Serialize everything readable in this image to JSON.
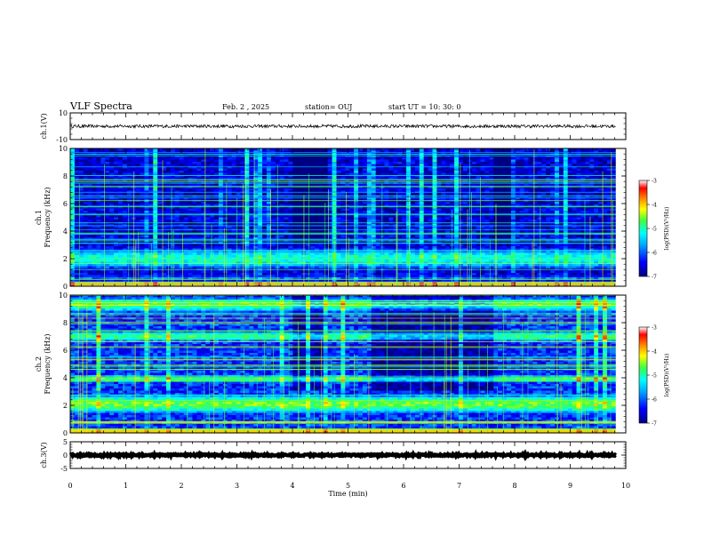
{
  "header": {
    "title": "VLF Spectra",
    "date": "Feb. 2 , 2025",
    "station": "station= OUJ",
    "start": "start UT = 10: 30: 0"
  },
  "chart_data": [
    {
      "type": "line",
      "name": "ch1-waveform",
      "ylabel": "ch.1(V)",
      "ylim": [
        -10,
        10
      ],
      "yticks": [
        "10",
        "-10"
      ],
      "baseline": 0,
      "amplitude": 1.2
    },
    {
      "type": "heatmap",
      "name": "ch1-spectrogram",
      "ylabel_top": "ch.1",
      "ylabel": "Frequency (kHz)",
      "ylim": [
        0,
        10
      ],
      "yticks": [
        "0",
        "2",
        "4",
        "6",
        "8",
        "10"
      ],
      "colorbar": {
        "label": "log(PSD)(V²/Hz)",
        "range": [
          -7,
          -3
        ],
        "ticks": [
          "-3",
          "-4",
          "-5",
          "-6",
          "-7"
        ]
      },
      "bands_khz": [
        {
          "center": 2.0,
          "width": 1.2,
          "level": -5.1
        },
        {
          "center": 0.6,
          "width": 0.3,
          "level": -5.8
        }
      ],
      "background_level": -6.6,
      "quiet_intervals_min": [
        [
          4.0,
          4.6
        ],
        [
          7.6,
          8.0
        ]
      ]
    },
    {
      "type": "heatmap",
      "name": "ch2-spectrogram",
      "ylabel_top": "ch.2",
      "ylabel": "Frequency (kHz)",
      "ylim": [
        0,
        10
      ],
      "yticks": [
        "0",
        "2",
        "4",
        "6",
        "8",
        "10"
      ],
      "colorbar": {
        "label": "log(PSD)(V²/Hz)",
        "range": [
          -7,
          -3
        ],
        "ticks": [
          "-3",
          "-4",
          "-5",
          "-6",
          "-7"
        ]
      },
      "bands_khz": [
        {
          "center": 2.1,
          "width": 1.0,
          "level": -4.6
        },
        {
          "center": 3.9,
          "width": 0.4,
          "level": -4.6
        },
        {
          "center": 7.0,
          "width": 0.6,
          "level": -4.8
        },
        {
          "center": 9.3,
          "width": 0.8,
          "level": -4.7
        }
      ],
      "background_level": -6.2,
      "quiet_intervals_min": [
        [
          4.0,
          4.6
        ],
        [
          5.4,
          7.6
        ]
      ]
    },
    {
      "type": "line",
      "name": "ch3-waveform",
      "ylabel": "ch.3(V)",
      "ylim": [
        -5,
        5
      ],
      "yticks": [
        "5",
        "0",
        "-5"
      ],
      "baseline": 0,
      "amplitude": 0.3
    }
  ],
  "xaxis": {
    "label": "Time (min)",
    "range": [
      0,
      10
    ],
    "ticks": [
      "0",
      "1",
      "2",
      "3",
      "4",
      "5",
      "6",
      "7",
      "8",
      "9",
      "10"
    ],
    "data_end": 9.82
  }
}
